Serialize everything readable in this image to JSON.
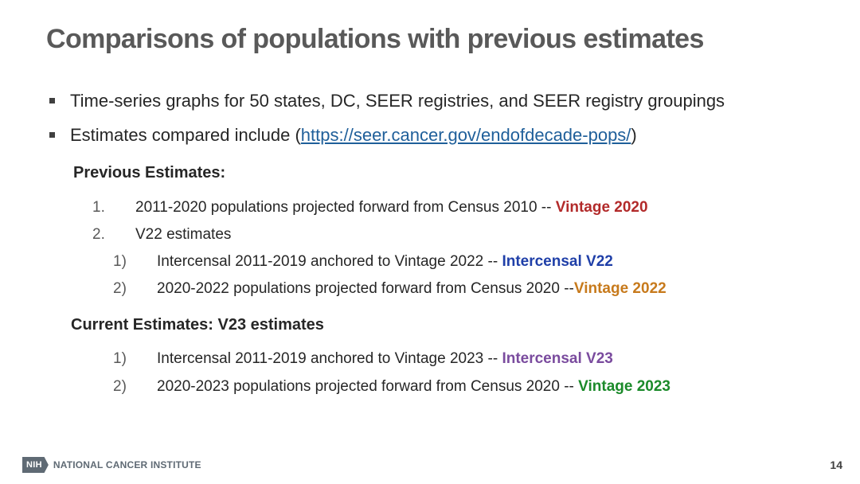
{
  "slide": {
    "title": "Comparisons of populations with previous estimates",
    "bullets": [
      "Time-series graphs for 50 states, DC, SEER registries, and SEER registry groupings",
      {
        "text_before": "Estimates compared include (",
        "link": "https://seer.cancer.gov/endofdecade-pops/",
        "text_after": ")"
      }
    ],
    "previous": {
      "heading": "Previous Estimates:",
      "items": [
        {
          "num": "1.",
          "text": "2011-2020 populations projected forward from Census 2010 -- ",
          "highlight": "Vintage 2020",
          "color": "#b22a2a"
        },
        {
          "num": "2.",
          "text": "V22 estimates",
          "highlight": ""
        }
      ],
      "subitems": [
        {
          "num": "1)",
          "text": "Intercensal 2011-2019 anchored to Vintage 2022 -- ",
          "highlight": "Intercensal V22",
          "color": "#1f3fa8"
        },
        {
          "num": "2)",
          "text": "2020-2022 populations projected forward from Census 2020 --",
          "highlight": "Vintage 2022",
          "color": "#c77a1c"
        }
      ]
    },
    "current": {
      "heading": "Current Estimates: V23 estimates",
      "items": [
        {
          "num": "1)",
          "text": "Intercensal 2011-2019 anchored to Vintage 2023 -- ",
          "highlight": "Intercensal V23",
          "color": "#7a4b9e"
        },
        {
          "num": "2)",
          "text": "2020-2023 populations projected forward from Census 2020 -- ",
          "highlight": "Vintage 2023",
          "color": "#1b8a2a"
        }
      ]
    }
  },
  "footer": {
    "nih_badge": "NIH",
    "institute": "NATIONAL CANCER INSTITUTE",
    "page_number": "14"
  }
}
